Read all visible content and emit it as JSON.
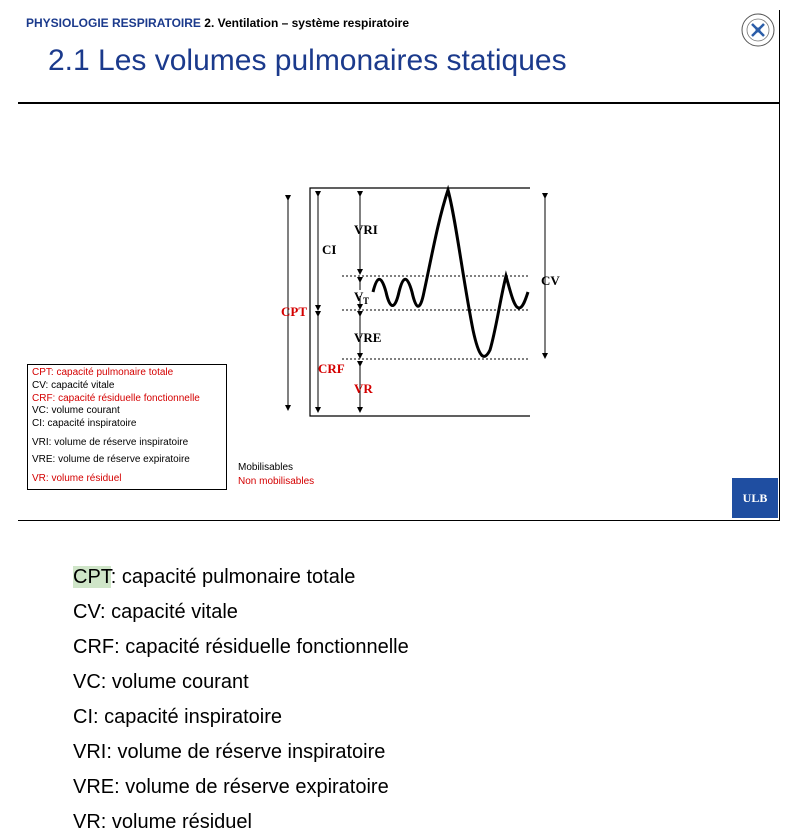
{
  "slide": {
    "header_prefix": "PHYSIOLOGIE RESPIRATOIRE",
    "header_rest": "2. Ventilation – système respiratoire",
    "title": "2.1 Les volumes pulmonaires statiques",
    "seal_icon": "university-seal-icon",
    "logo_text": "ULB",
    "diagram_labels": {
      "vri": "VRI",
      "ci": "CI",
      "vt_main": "V",
      "vt_sub": "T",
      "cpt": "CPT",
      "vre": "VRE",
      "crf": "CRF",
      "vr": "VR",
      "cv": "CV"
    },
    "legend": [
      {
        "text": "CPT: capacité pulmonaire totale",
        "color": "red"
      },
      {
        "text": "CV: capacité vitale",
        "color": "black"
      },
      {
        "text": "CRF: capacité résiduelle fonctionnelle",
        "color": "red"
      },
      {
        "text": "VC: volume courant",
        "color": "black"
      },
      {
        "text": "CI: capacité inspiratoire",
        "color": "black"
      },
      {
        "text": "VRI: volume de réserve inspiratoire",
        "color": "black"
      },
      {
        "text": "VRE: volume de réserve expiratoire",
        "color": "black"
      },
      {
        "text": "VR: volume résiduel",
        "color": "red"
      }
    ],
    "mobilisables": "Mobilisables",
    "non_mobilisables": "Non mobilisables",
    "colors": {
      "accent": "#1b3a8c",
      "red": "#d40000",
      "logo_bg": "#1f4ea1"
    }
  },
  "glossary": [
    {
      "abbr": "CPT",
      "rest": ": capacité pulmonaire totale",
      "highlight": true
    },
    {
      "abbr": "CV",
      "rest": ": capacité vitale"
    },
    {
      "abbr": "CRF",
      "rest": ": capacité résiduelle fonctionnelle"
    },
    {
      "abbr": "VC",
      "rest": ": volume courant"
    },
    {
      "abbr": "CI",
      "rest": ": capacité inspiratoire"
    },
    {
      "abbr": "VRI",
      "rest": ": volume de réserve inspiratoire"
    },
    {
      "abbr": "VRE",
      "rest": ": volume de réserve expiratoire"
    },
    {
      "abbr": "VR",
      "rest": ": volume résiduel"
    }
  ]
}
